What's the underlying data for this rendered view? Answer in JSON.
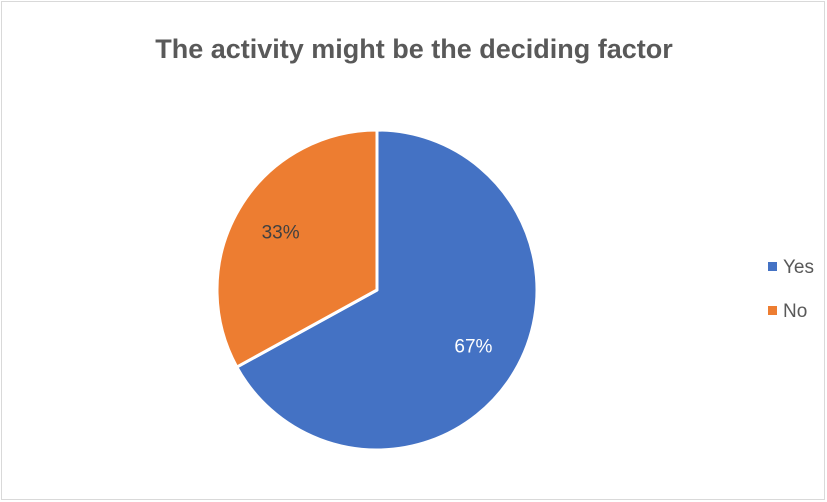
{
  "chart_data": {
    "type": "pie",
    "title": "The activity might be the deciding factor",
    "categories": [
      "Yes",
      "No"
    ],
    "values": [
      67,
      33
    ],
    "labels": [
      "67%",
      "33%"
    ],
    "colors": [
      "#4472c4",
      "#ed7d31"
    ],
    "legend_position": "right",
    "start_angle": "12 o'clock",
    "direction": "clockwise"
  }
}
